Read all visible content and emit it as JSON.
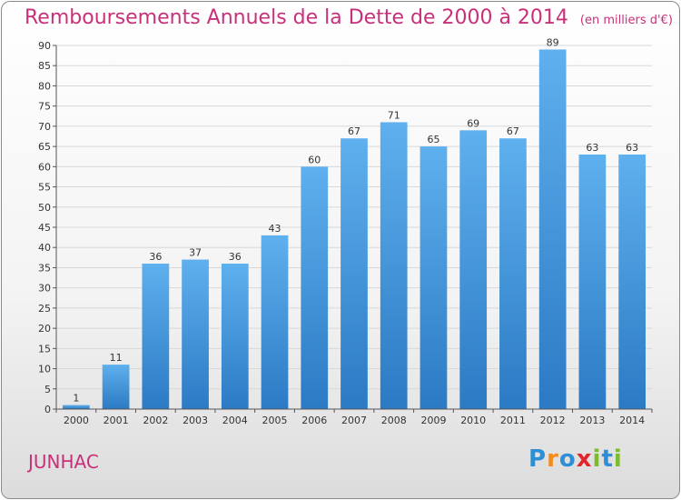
{
  "header": {
    "title": "Remboursements Annuels de la Dette de 2000 à 2014",
    "subtitle": "(en milliers d'€)"
  },
  "footer": {
    "city": "JUNHAC",
    "brand": "Proxiti",
    "brand_letters": [
      "P",
      "r",
      "o",
      "x",
      "i",
      "t",
      "i"
    ],
    "brand_colors": [
      "#2e8fd6",
      "#f28c1e",
      "#2e8fd6",
      "#e0262b",
      "#7dbb2e",
      "#2e8fd6",
      "#7dbb2e"
    ]
  },
  "colors": {
    "title": "#c8307a",
    "bar_light": "#5fb0ee",
    "bar_dark": "#2b7ac4",
    "grid": "#d8d8d8"
  },
  "chart_data": {
    "type": "bar",
    "title": "Remboursements Annuels de la Dette de 2000 à 2014",
    "subtitle": "(en milliers d'€)",
    "categories": [
      "2000",
      "2001",
      "2002",
      "2003",
      "2004",
      "2005",
      "2006",
      "2007",
      "2008",
      "2009",
      "2010",
      "2011",
      "2012",
      "2013",
      "2014"
    ],
    "values": [
      1,
      11,
      36,
      37,
      36,
      43,
      60,
      67,
      71,
      65,
      69,
      67,
      89,
      63,
      63
    ],
    "ylim": [
      0,
      90
    ],
    "yticks": [
      0,
      5,
      10,
      15,
      20,
      25,
      30,
      35,
      40,
      45,
      50,
      55,
      60,
      65,
      70,
      75,
      80,
      85,
      90
    ],
    "grid": true,
    "xlabel": "",
    "ylabel": ""
  }
}
